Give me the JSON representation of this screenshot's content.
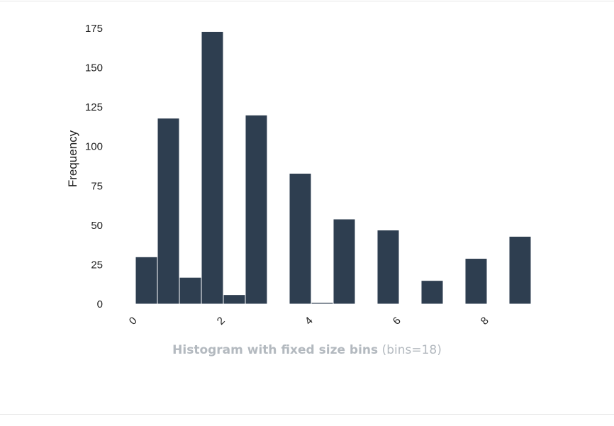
{
  "chart_data": {
    "type": "bar",
    "bins": 18,
    "x": [
      0,
      0.5,
      1,
      1.5,
      2,
      2.5,
      3,
      3.5,
      4,
      4.5,
      5,
      5.5,
      6,
      6.5,
      7,
      7.5,
      8,
      8.5
    ],
    "bin_width": 0.5,
    "values": [
      30,
      118,
      17,
      173,
      6,
      120,
      0,
      83,
      1,
      54,
      0,
      47,
      0,
      15,
      0,
      29,
      0,
      43
    ],
    "xticks": [
      "0",
      "2",
      "4",
      "6",
      "8"
    ],
    "xtick_values": [
      0,
      2,
      4,
      6,
      8
    ],
    "yticks": [
      "0",
      "25",
      "50",
      "75",
      "100",
      "125",
      "150",
      "175"
    ],
    "ytick_values": [
      0,
      25,
      50,
      75,
      100,
      125,
      150,
      175
    ],
    "xlim": [
      0,
      9
    ],
    "ylim": [
      0,
      175
    ],
    "ylabel": "Frequency",
    "xlabel": "",
    "grid": false,
    "bar_color": "#2e3e50"
  },
  "caption": {
    "title": "Histogram with fixed size bins",
    "note": "(bins=18)"
  },
  "colors": {
    "caption": "#b3b9bf",
    "text": "#222222",
    "frame": "#e6e6e6"
  }
}
